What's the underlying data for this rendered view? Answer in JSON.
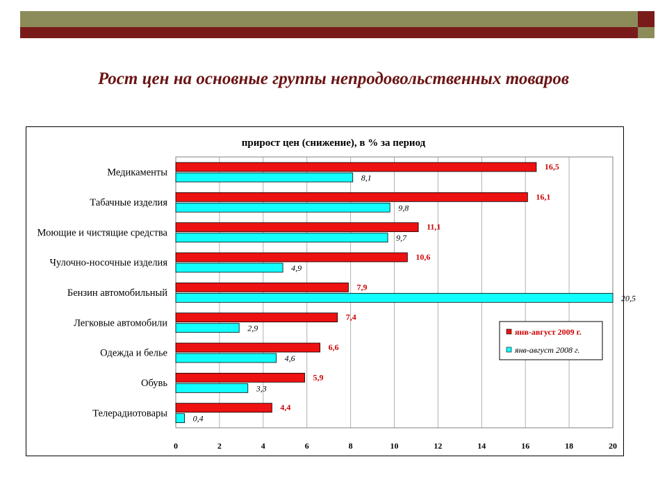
{
  "slide": {
    "title": "Рост цен на основные группы непродовольственных товаров"
  },
  "colors": {
    "series_2009": "#ee1111",
    "series_2008": "#11ffff",
    "decor_olive": "#8c8c5a",
    "decor_red": "#7a1b1b",
    "title_color": "#6b1414"
  },
  "chart_data": {
    "type": "bar",
    "orientation": "horizontal",
    "title": "прирост цен (снижение), в % за период",
    "xlim": [
      0,
      20
    ],
    "x_ticks": [
      0,
      2,
      4,
      6,
      8,
      10,
      12,
      14,
      16,
      18,
      20
    ],
    "grid": "vertical",
    "legend_position": "right-middle",
    "categories": [
      "Медикаменты",
      "Табачные изделия",
      "Моющие и чистящие средства",
      "Чулочно-носочные изделия",
      "Бензин автомобильный",
      "Легковые автомобили",
      "Одежда и белье",
      "Обувь",
      "Телерадиотовары"
    ],
    "series": [
      {
        "name": "янв-август 2009 г.",
        "values": [
          16.5,
          16.1,
          11.1,
          10.6,
          7.9,
          7.4,
          6.6,
          5.9,
          4.4
        ],
        "labels": [
          "16,5",
          "16,1",
          "11,1",
          "10,6",
          "7,9",
          "7,4",
          "6,6",
          "5,9",
          "4,4"
        ]
      },
      {
        "name": "янв-август 2008 г.",
        "values": [
          8.1,
          9.8,
          9.7,
          4.9,
          20.5,
          2.9,
          4.6,
          3.3,
          0.4
        ],
        "labels": [
          "8,1",
          "9,8",
          "9,7",
          "4,9",
          "20,5",
          "2,9",
          "4,6",
          "3,3",
          "0,4"
        ]
      }
    ]
  }
}
